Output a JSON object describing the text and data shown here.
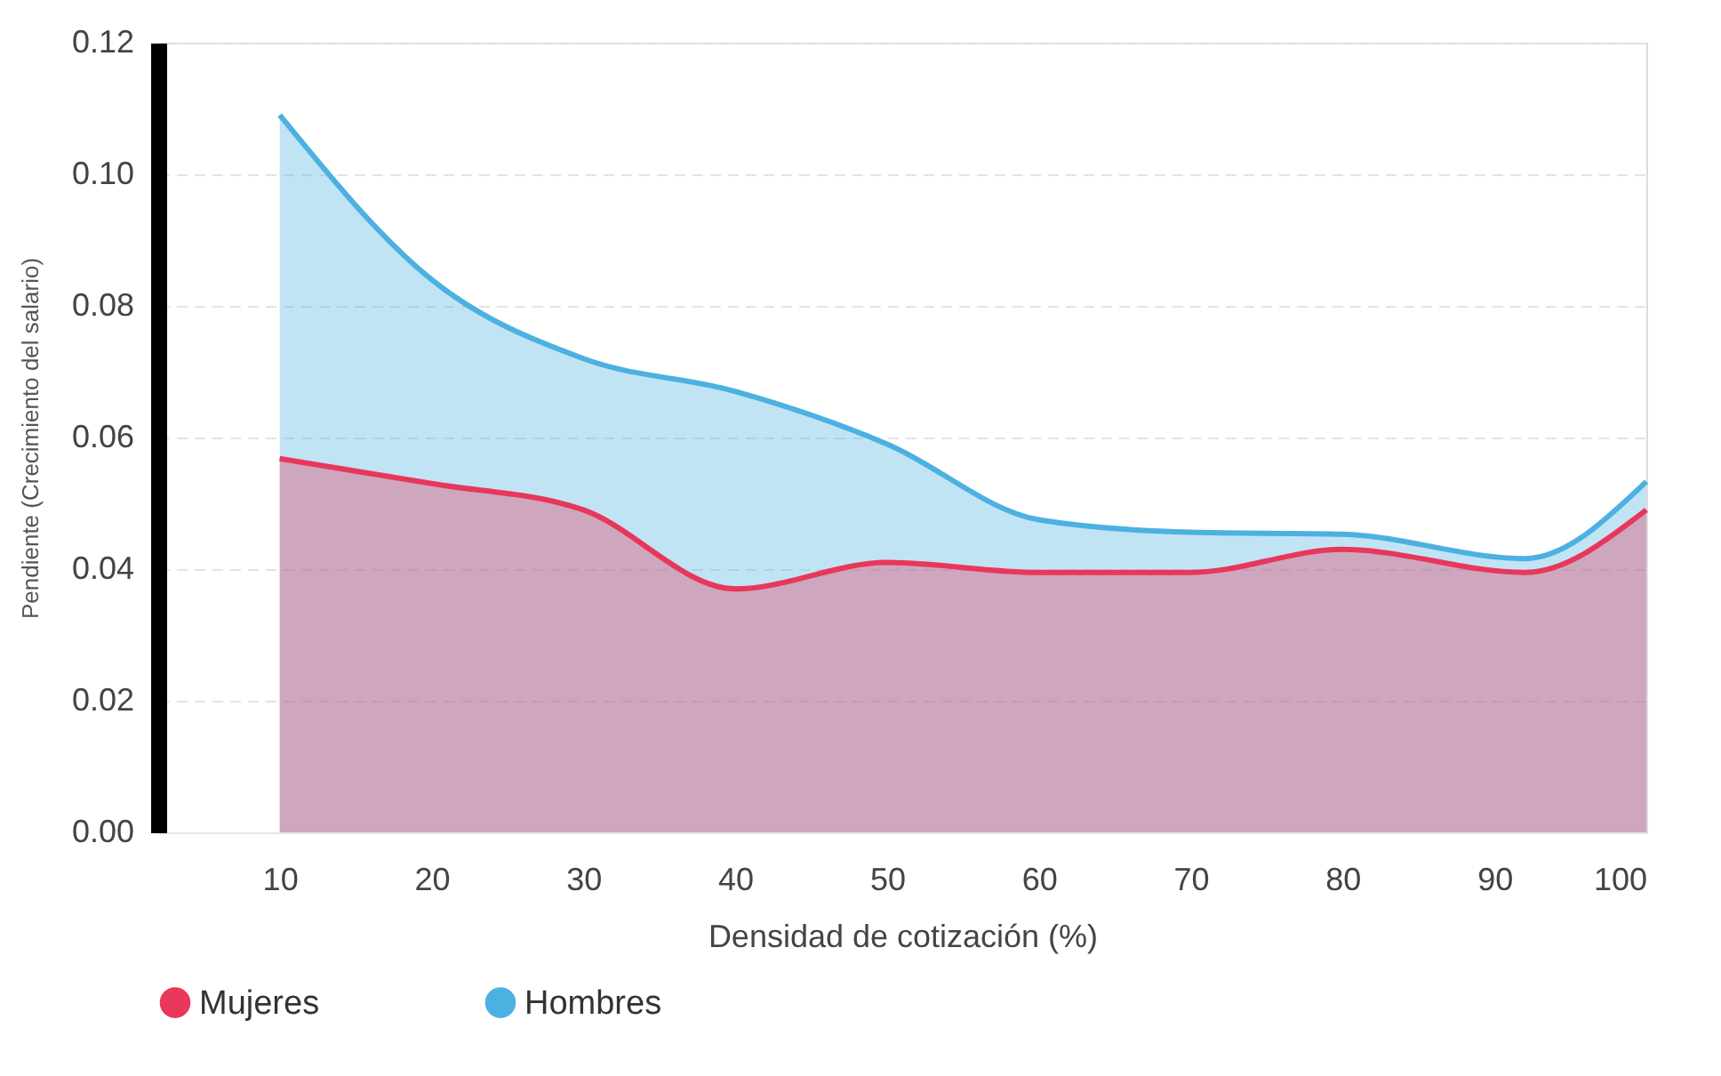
{
  "chart_data": {
    "type": "area",
    "xlabel": "Densidad de cotización (%)",
    "ylabel": "Pendiente  (Crecimiento del salario)",
    "x": [
      10,
      20,
      30,
      40,
      50,
      60,
      70,
      80,
      92,
      100
    ],
    "series": [
      {
        "name": "Mujeres",
        "color": "#e8375a",
        "values": [
          0.0568,
          0.053,
          0.049,
          0.037,
          0.041,
          0.0395,
          0.0395,
          0.043,
          0.0395,
          0.049
        ]
      },
      {
        "name": "Hombres",
        "color": "#4cb1e1",
        "values": [
          0.109,
          0.084,
          0.072,
          0.067,
          0.059,
          0.0475,
          0.0456,
          0.0453,
          0.0416,
          0.0533
        ]
      }
    ],
    "xlim": [
      2,
      100
    ],
    "xticks": [
      10,
      20,
      30,
      40,
      50,
      60,
      70,
      80,
      90,
      100
    ],
    "ylim": [
      0,
      0.12
    ],
    "yticks": [
      {
        "value": 0,
        "label": "0.00"
      },
      0.02,
      0.04,
      0.06,
      0.08,
      {
        "value": 0.1,
        "label": "0.10"
      },
      0.12
    ],
    "grid": "y",
    "legend": "bottom"
  }
}
